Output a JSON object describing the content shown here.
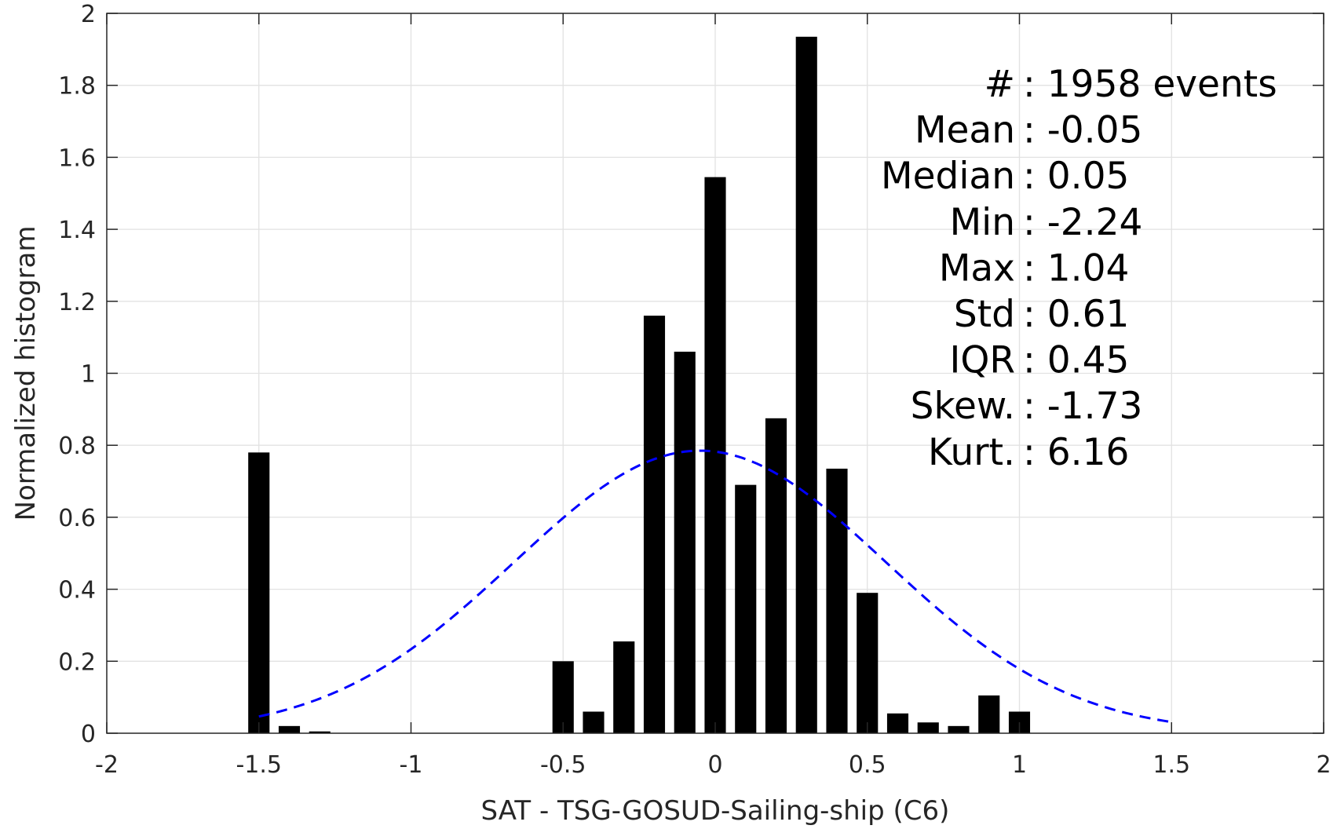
{
  "chart_data": {
    "type": "bar",
    "xlabel": "SAT - TSG-GOSUD-Sailing-ship (C6)",
    "ylabel": "Normalized histogram",
    "xlim": [
      -2,
      2
    ],
    "ylim": [
      0,
      2
    ],
    "grid": true,
    "x_ticks": [
      "-2",
      "-1.5",
      "-1",
      "-0.5",
      "0",
      "0.5",
      "1",
      "1.5",
      "2"
    ],
    "y_ticks": [
      "0",
      "0.2",
      "0.4",
      "0.6",
      "0.8",
      "1",
      "1.2",
      "1.4",
      "1.6",
      "1.8",
      "2"
    ],
    "bar_width": 0.07,
    "bars": {
      "x": [
        -1.5,
        -1.4,
        -1.3,
        -0.5,
        -0.4,
        -0.3,
        -0.2,
        -0.1,
        0.0,
        0.1,
        0.2,
        0.3,
        0.4,
        0.5,
        0.6,
        0.7,
        0.8,
        0.9,
        1.0
      ],
      "values": [
        0.78,
        0.02,
        0.005,
        0.2,
        0.06,
        0.255,
        1.16,
        1.06,
        1.545,
        0.69,
        0.875,
        1.935,
        0.735,
        0.39,
        0.055,
        0.03,
        0.02,
        0.105,
        0.06
      ],
      "color": "#000000"
    },
    "fit_curve": {
      "kind": "gaussian",
      "mean": -0.05,
      "std": 0.61,
      "peak": 0.785,
      "x_range": [
        -1.5,
        1.5
      ],
      "style": "dashed",
      "color": "#0000ff"
    },
    "stats": [
      {
        "label": "#  ",
        "value": "1958 events"
      },
      {
        "label": "Mean",
        "value": "-0.05"
      },
      {
        "label": "Median",
        "value": "0.05"
      },
      {
        "label": "Min",
        "value": "-2.24"
      },
      {
        "label": "Max",
        "value": "1.04"
      },
      {
        "label": "Std",
        "value": "0.61"
      },
      {
        "label": "IQR",
        "value": "0.45"
      },
      {
        "label": "Skew.",
        "value": "-1.73"
      },
      {
        "label": "Kurt.",
        "value": "6.16"
      }
    ]
  }
}
